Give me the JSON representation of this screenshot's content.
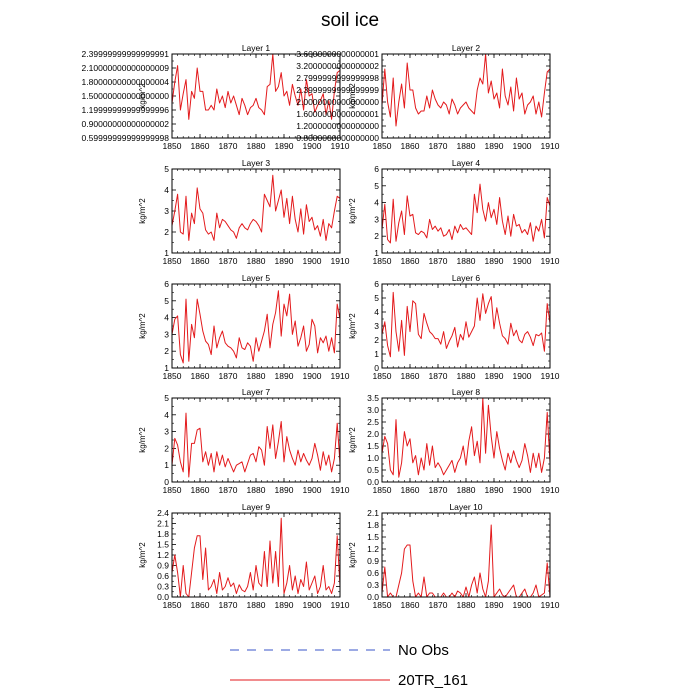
{
  "title": "soil ice",
  "legend": {
    "entries": [
      {
        "label": "No Obs",
        "color": "#3a55c8",
        "dashed": true
      },
      {
        "label": "20TR_161",
        "color": "#e31a1c",
        "dashed": false
      }
    ]
  },
  "colors": {
    "series": "#e31a1c",
    "frame": "#000000"
  },
  "chart_data": [
    {
      "type": "line",
      "title": "Layer 1",
      "ylabel": "kg/m^2",
      "xlim": [
        1850,
        1910
      ],
      "ylim": [
        0.6,
        2.4
      ],
      "xticks": [
        1850,
        1860,
        1870,
        1880,
        1890,
        1900,
        1910
      ],
      "yticks": [
        0.6,
        0.9,
        1.2,
        1.5,
        1.8,
        2.1,
        2.4
      ],
      "x_start": 1850,
      "series": [
        {
          "values": [
            1.35,
            1.8,
            2.15,
            1.2,
            1.55,
            1.85,
            1.0,
            1.6,
            1.45,
            2.1,
            1.6,
            1.6,
            1.2,
            1.2,
            1.3,
            1.2,
            1.65,
            1.35,
            1.5,
            1.25,
            1.6,
            1.35,
            1.5,
            1.3,
            1.1,
            1.45,
            1.3,
            1.1,
            1.25,
            1.3,
            1.45,
            1.25,
            1.2,
            1.1,
            1.7,
            1.75,
            2.4,
            1.6,
            1.7,
            2.0,
            1.5,
            1.6,
            1.3,
            1.75,
            1.5,
            1.3,
            1.65,
            1.2,
            1.85,
            1.5,
            1.55,
            1.15,
            1.3,
            1.4,
            1.55,
            1.1,
            1.4,
            1.0,
            1.6,
            2.0,
            2.05
          ]
        }
      ]
    },
    {
      "type": "line",
      "title": "Layer 2",
      "ylabel": "kg/m^2",
      "xlim": [
        1850,
        1910
      ],
      "ylim": [
        0.8,
        3.6
      ],
      "xticks": [
        1850,
        1860,
        1870,
        1880,
        1890,
        1900,
        1910
      ],
      "yticks": [
        0.8,
        1.2,
        1.6,
        2.0,
        2.4,
        2.8,
        3.2,
        3.6
      ],
      "x_start": 1850,
      "series": [
        {
          "values": [
            1.9,
            3.1,
            2.0,
            1.5,
            2.8,
            1.2,
            2.0,
            2.6,
            1.8,
            3.3,
            2.4,
            2.4,
            1.8,
            1.6,
            1.7,
            1.7,
            2.2,
            1.8,
            2.4,
            2.1,
            1.9,
            1.8,
            2.0,
            1.9,
            1.6,
            2.1,
            1.9,
            1.6,
            1.8,
            1.9,
            2.0,
            1.8,
            1.7,
            1.6,
            2.4,
            2.8,
            2.6,
            3.6,
            2.3,
            2.7,
            2.1,
            2.3,
            1.8,
            3.1,
            2.2,
            1.9,
            2.5,
            1.7,
            2.8,
            2.1,
            2.3,
            1.6,
            1.9,
            2.0,
            2.2,
            1.6,
            2.0,
            1.5,
            2.3,
            3.0,
            3.1
          ]
        }
      ]
    },
    {
      "type": "line",
      "title": "Layer 3",
      "ylabel": "kg/m^2",
      "xlim": [
        1850,
        1910
      ],
      "ylim": [
        1.0,
        5.0
      ],
      "xticks": [
        1850,
        1860,
        1870,
        1880,
        1890,
        1900,
        1910
      ],
      "yticks": [
        1.0,
        2.0,
        3.0,
        4.0,
        5.0
      ],
      "x_start": 1850,
      "series": [
        {
          "values": [
            2.3,
            3.0,
            3.8,
            2.0,
            1.9,
            3.7,
            1.6,
            2.9,
            2.4,
            4.1,
            3.1,
            2.9,
            2.1,
            1.9,
            2.0,
            1.6,
            2.9,
            2.2,
            2.6,
            2.5,
            2.3,
            2.1,
            2.0,
            1.7,
            2.2,
            2.4,
            2.2,
            2.1,
            2.4,
            2.6,
            2.5,
            2.3,
            2.0,
            3.8,
            3.5,
            3.2,
            4.7,
            3.0,
            3.5,
            4.0,
            2.7,
            3.6,
            2.4,
            3.7,
            2.6,
            2.0,
            3.1,
            1.9,
            3.3,
            2.5,
            2.7,
            2.1,
            2.3,
            1.8,
            2.6,
            1.6,
            2.4,
            2.2,
            3.0,
            3.7,
            3.6
          ]
        }
      ]
    },
    {
      "type": "line",
      "title": "Layer 4",
      "ylabel": "kg/m^2",
      "xlim": [
        1850,
        1910
      ],
      "ylim": [
        1.0,
        6.0
      ],
      "xticks": [
        1850,
        1860,
        1870,
        1880,
        1890,
        1900,
        1910
      ],
      "yticks": [
        1.0,
        2.0,
        3.0,
        4.0,
        5.0,
        6.0
      ],
      "x_start": 1850,
      "series": [
        {
          "values": [
            2.4,
            3.9,
            1.8,
            1.6,
            4.2,
            1.7,
            2.8,
            3.5,
            2.1,
            4.4,
            3.2,
            3.3,
            2.2,
            2.1,
            2.3,
            2.2,
            1.9,
            3.0,
            2.4,
            2.6,
            2.3,
            2.5,
            2.0,
            2.1,
            2.4,
            1.8,
            2.6,
            2.2,
            2.7,
            2.4,
            2.5,
            2.3,
            2.1,
            4.5,
            3.4,
            5.1,
            3.6,
            2.9,
            4.0,
            3.1,
            3.6,
            2.7,
            4.3,
            2.9,
            2.1,
            3.2,
            2.0,
            3.3,
            2.6,
            2.7,
            2.2,
            2.4,
            2.1,
            2.8,
            1.7,
            2.6,
            2.3,
            3.0,
            1.9,
            4.3,
            3.8
          ]
        }
      ]
    },
    {
      "type": "line",
      "title": "Layer 5",
      "ylabel": "kg/m^2",
      "xlim": [
        1850,
        1910
      ],
      "ylim": [
        1.0,
        6.0
      ],
      "xticks": [
        1850,
        1860,
        1870,
        1880,
        1890,
        1900,
        1910
      ],
      "yticks": [
        1.0,
        2.0,
        3.0,
        4.0,
        5.0,
        6.0
      ],
      "x_start": 1850,
      "series": [
        {
          "values": [
            3.0,
            3.9,
            4.1,
            1.8,
            1.3,
            5.1,
            1.4,
            3.6,
            2.8,
            5.1,
            4.2,
            3.2,
            2.6,
            2.4,
            1.8,
            3.5,
            2.2,
            2.8,
            3.2,
            2.5,
            2.3,
            2.2,
            2.0,
            1.6,
            2.8,
            2.2,
            2.1,
            2.5,
            2.3,
            1.4,
            2.8,
            2.0,
            2.6,
            3.2,
            4.2,
            2.2,
            3.6,
            4.3,
            5.6,
            2.9,
            4.8,
            4.1,
            5.4,
            3.0,
            3.8,
            2.3,
            2.8,
            3.5,
            2.0,
            2.4,
            3.9,
            3.5,
            1.9,
            2.8,
            2.5,
            2.9,
            2.0,
            2.8,
            1.9,
            4.8,
            3.9
          ]
        }
      ]
    },
    {
      "type": "line",
      "title": "Layer 6",
      "ylabel": "kg/m^2",
      "xlim": [
        1850,
        1910
      ],
      "ylim": [
        0.0,
        6.0
      ],
      "xticks": [
        1850,
        1860,
        1870,
        1880,
        1890,
        1900,
        1910
      ],
      "yticks": [
        0.0,
        1.0,
        2.0,
        3.0,
        4.0,
        5.0,
        6.0
      ],
      "x_start": 1850,
      "series": [
        {
          "values": [
            2.4,
            3.3,
            1.6,
            0.8,
            5.4,
            2.6,
            1.2,
            3.4,
            0.9,
            4.4,
            2.6,
            4.8,
            4.6,
            2.4,
            2.1,
            3.9,
            3.2,
            2.6,
            2.4,
            2.1,
            2.1,
            1.7,
            2.6,
            1.4,
            1.9,
            2.3,
            2.9,
            1.5,
            2.4,
            2.0,
            3.3,
            2.2,
            2.6,
            3.0,
            5.0,
            3.4,
            5.3,
            3.9,
            4.6,
            5.1,
            2.8,
            4.3,
            3.2,
            2.3,
            2.1,
            1.7,
            3.2,
            2.3,
            2.7,
            2.0,
            1.8,
            2.4,
            2.6,
            2.2,
            1.6,
            2.4,
            2.3,
            2.5,
            1.2,
            4.6,
            3.2
          ]
        }
      ]
    },
    {
      "type": "line",
      "title": "Layer 7",
      "ylabel": "kg/m^2",
      "xlim": [
        1850,
        1910
      ],
      "ylim": [
        0.0,
        5.0
      ],
      "xticks": [
        1850,
        1860,
        1870,
        1880,
        1890,
        1900,
        1910
      ],
      "yticks": [
        0.0,
        1.0,
        2.0,
        3.0,
        4.0,
        5.0
      ],
      "x_start": 1850,
      "series": [
        {
          "values": [
            1.0,
            2.6,
            2.2,
            1.2,
            0.6,
            4.1,
            0.3,
            2.3,
            2.3,
            3.1,
            3.2,
            1.2,
            1.8,
            1.0,
            1.7,
            0.6,
            1.8,
            1.0,
            1.6,
            0.9,
            1.4,
            1.0,
            0.6,
            1.0,
            1.1,
            1.2,
            0.6,
            1.1,
            1.6,
            1.7,
            1.2,
            2.1,
            1.9,
            1.0,
            3.3,
            2.0,
            3.4,
            1.4,
            2.4,
            3.6,
            1.2,
            2.7,
            1.9,
            1.4,
            1.0,
            1.9,
            1.2,
            1.7,
            1.3,
            1.0,
            1.4,
            2.3,
            1.6,
            0.7,
            1.8,
            1.0,
            1.6,
            0.6,
            1.4,
            3.5,
            1.1
          ]
        }
      ]
    },
    {
      "type": "line",
      "title": "Layer 8",
      "ylabel": "kg/m^2",
      "xlim": [
        1850,
        1910
      ],
      "ylim": [
        0.0,
        3.5
      ],
      "xticks": [
        1850,
        1860,
        1870,
        1880,
        1890,
        1900,
        1910
      ],
      "yticks": [
        0.0,
        0.5,
        1.0,
        1.5,
        2.0,
        2.5,
        3.0,
        3.5
      ],
      "x_start": 1850,
      "series": [
        {
          "values": [
            1.2,
            1.9,
            1.6,
            0.5,
            0.3,
            2.6,
            0.2,
            0.8,
            2.1,
            1.5,
            1.8,
            0.8,
            1.1,
            0.3,
            1.0,
            0.5,
            1.6,
            0.7,
            1.5,
            0.6,
            0.8,
            0.6,
            0.3,
            0.5,
            0.7,
            0.9,
            0.4,
            0.8,
            1.0,
            1.5,
            0.7,
            1.7,
            2.3,
            1.1,
            1.7,
            0.8,
            3.5,
            1.2,
            3.2,
            1.9,
            1.0,
            2.1,
            1.4,
            0.9,
            0.5,
            1.2,
            0.8,
            1.3,
            0.9,
            0.6,
            0.9,
            1.6,
            1.1,
            0.4,
            1.2,
            0.6,
            1.2,
            0.4,
            1.0,
            2.9,
            0.8
          ]
        }
      ]
    },
    {
      "type": "line",
      "title": "Layer 9",
      "ylabel": "kg/m^2",
      "xlim": [
        1850,
        1910
      ],
      "ylim": [
        0.0,
        2.4
      ],
      "xticks": [
        1850,
        1860,
        1870,
        1880,
        1890,
        1900,
        1910
      ],
      "yticks": [
        0.0,
        0.3,
        0.6,
        0.9,
        1.2,
        1.5,
        1.8,
        2.1,
        2.4
      ],
      "x_start": 1850,
      "series": [
        {
          "values": [
            0.7,
            1.2,
            0.7,
            0.0,
            0.9,
            0.1,
            0.0,
            0.7,
            1.4,
            1.75,
            1.75,
            0.5,
            1.4,
            0.2,
            0.3,
            0.5,
            0.1,
            0.7,
            0.2,
            0.3,
            0.55,
            0.3,
            0.4,
            0.1,
            0.35,
            0.2,
            0.15,
            0.3,
            0.7,
            0.2,
            0.9,
            0.4,
            0.3,
            1.3,
            0.3,
            1.6,
            0.4,
            1.3,
            0.3,
            2.25,
            0.1,
            0.4,
            0.9,
            0.2,
            0.6,
            0.1,
            0.5,
            0.3,
            1.0,
            0.2,
            0.4,
            0.6,
            0.1,
            0.3,
            0.9,
            0.2,
            0.3,
            0.1,
            0.4,
            1.75,
            0.3
          ]
        }
      ]
    },
    {
      "type": "line",
      "title": "Layer 10",
      "ylabel": "kg/m^2",
      "xlim": [
        1850,
        1910
      ],
      "ylim": [
        0.0,
        2.1
      ],
      "xticks": [
        1850,
        1860,
        1870,
        1880,
        1890,
        1900,
        1910
      ],
      "yticks": [
        0.0,
        0.3,
        0.6,
        0.9,
        1.2,
        1.5,
        1.8,
        2.1
      ],
      "x_start": 1850,
      "series": [
        {
          "values": [
            0.1,
            0.75,
            0.0,
            0.1,
            0.0,
            0.0,
            0.3,
            0.6,
            1.2,
            1.3,
            1.3,
            0.4,
            0.0,
            0.1,
            0.0,
            0.5,
            0.0,
            0.1,
            0.1,
            0.0,
            0.0,
            0.0,
            0.1,
            0.0,
            0.0,
            0.1,
            0.0,
            0.15,
            0.1,
            0.0,
            0.25,
            0.0,
            0.3,
            0.5,
            0.1,
            0.6,
            0.2,
            0.0,
            0.4,
            1.8,
            0.0,
            0.1,
            0.2,
            0.05,
            0.0,
            0.1,
            0.2,
            0.3,
            0.0,
            0.0,
            0.1,
            0.2,
            0.0,
            0.0,
            0.1,
            0.3,
            0.0,
            0.05,
            0.1,
            0.85,
            0.0
          ]
        }
      ]
    }
  ]
}
